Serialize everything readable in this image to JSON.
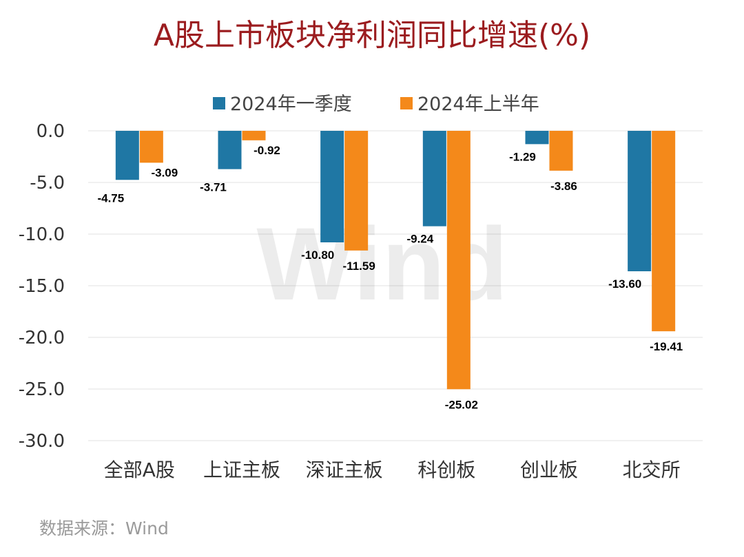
{
  "chart_data": {
    "type": "bar",
    "title": "A股上市板块净利润同比增速(%)",
    "categories": [
      "全部A股",
      "上证主板",
      "深证主板",
      "科创板",
      "创业板",
      "北交所"
    ],
    "series": [
      {
        "name": "2024年一季度",
        "color": "#1f77a4",
        "values": [
          -4.75,
          -3.71,
          -10.8,
          -9.24,
          -1.29,
          -13.6
        ]
      },
      {
        "name": "2024年上半年",
        "color": "#f4891a",
        "values": [
          -3.09,
          -0.92,
          -11.59,
          -25.02,
          -3.86,
          -19.41
        ]
      }
    ],
    "ylim": [
      -30,
      0
    ],
    "yticks": [
      "0.0",
      "-5.0",
      "-10.0",
      "-15.0",
      "-20.0",
      "-25.0",
      "-30.0"
    ],
    "ytick_values": [
      0,
      -5,
      -10,
      -15,
      -20,
      -25,
      -30
    ],
    "xlabel": "",
    "ylabel": "",
    "legend_position": "top",
    "grid": true,
    "source": "数据来源：Wind",
    "watermark": "Wind"
  }
}
